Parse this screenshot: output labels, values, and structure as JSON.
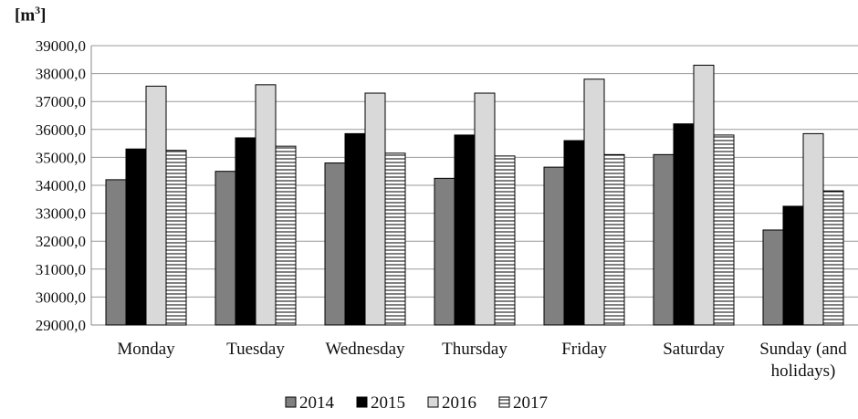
{
  "chart_data": {
    "type": "bar",
    "unit_label_base": "[m",
    "unit_label_sup": "3",
    "unit_label_close": "]",
    "categories": [
      "Monday",
      "Tuesday",
      "Wednesday",
      "Thursday",
      "Friday",
      "Saturday",
      "Sunday (and holidays)"
    ],
    "category_lines": [
      [
        "Monday"
      ],
      [
        "Tuesday"
      ],
      [
        "Wednesday"
      ],
      [
        "Thursday"
      ],
      [
        "Friday"
      ],
      [
        "Saturday"
      ],
      [
        "Sunday (and",
        "holidays)"
      ]
    ],
    "series": [
      {
        "name": "2014",
        "color": "#808080",
        "pattern": "solid",
        "values": [
          34200,
          34500,
          34800,
          34250,
          34650,
          35100,
          32400
        ]
      },
      {
        "name": "2015",
        "color": "#000000",
        "pattern": "solid",
        "values": [
          35300,
          35700,
          35850,
          35800,
          35600,
          36200,
          33250
        ]
      },
      {
        "name": "2016",
        "color": "#d9d9d9",
        "pattern": "solid",
        "values": [
          37550,
          37600,
          37300,
          37300,
          37800,
          38300,
          35850
        ]
      },
      {
        "name": "2017",
        "color": "#ffffff",
        "pattern": "horizontal-lines",
        "values": [
          35250,
          35400,
          35150,
          35050,
          35100,
          35800,
          33800
        ]
      }
    ],
    "yticks": [
      "29000,0",
      "30000,0",
      "31000,0",
      "32000,0",
      "33000,0",
      "34000,0",
      "35000,0",
      "36000,0",
      "37000,0",
      "38000,0",
      "39000,0"
    ],
    "ylim": [
      29000,
      39000
    ],
    "grid": true,
    "legend_position": "bottom"
  }
}
